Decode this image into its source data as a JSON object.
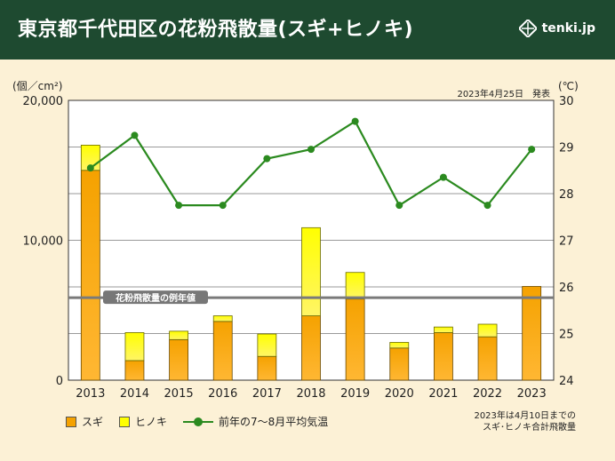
{
  "header": {
    "title": "東京都千代田区の花粉飛散量(スギ+ヒノキ)",
    "logo_text": "tenki.jp"
  },
  "announcement": "2023年4月25日　発表",
  "footnote": {
    "line1": "2023年は4月10日までの",
    "line2": "スギ･ヒノキ合計飛散量"
  },
  "colors": {
    "sugi": "#f5a200",
    "hinoki": "#ffff00",
    "temp_line": "#2b8a1f",
    "average_line": "#7a7a7a",
    "header_bg": "#1e4a30"
  },
  "chart_data": {
    "type": "bar",
    "stacked": true,
    "categories": [
      "2013",
      "2014",
      "2015",
      "2016",
      "2017",
      "2018",
      "2019",
      "2020",
      "2021",
      "2022",
      "2023"
    ],
    "series": [
      {
        "name": "スギ",
        "values": [
          15000,
          1400,
          2900,
          4200,
          1700,
          4600,
          5800,
          2300,
          3400,
          3100,
          6700
        ]
      },
      {
        "name": "ヒノキ",
        "values": [
          1800,
          2000,
          600,
          400,
          1600,
          6300,
          1900,
          400,
          400,
          900,
          0
        ]
      }
    ],
    "line_series": {
      "name": "前年の7～8月平均気温",
      "values": [
        28.55,
        29.25,
        27.75,
        27.75,
        28.75,
        28.95,
        29.55,
        27.75,
        28.35,
        27.75,
        28.95
      ]
    },
    "reference_line": {
      "label": "花粉飛散量の例年値",
      "value": 5900
    },
    "y_left": {
      "unit": "(個／cm²)",
      "ylim": [
        0,
        20000
      ],
      "ticks": [
        "0",
        "10,000",
        "20,000"
      ],
      "tick_values": [
        0,
        10000,
        20000
      ]
    },
    "y_right": {
      "unit": "(℃)",
      "ylim": [
        24,
        30
      ],
      "ticks": [
        "24",
        "25",
        "26",
        "27",
        "28",
        "29",
        "30"
      ],
      "tick_values": [
        24,
        25,
        26,
        27,
        28,
        29,
        30
      ]
    },
    "grid": true,
    "legend_position": "bottom-left"
  }
}
